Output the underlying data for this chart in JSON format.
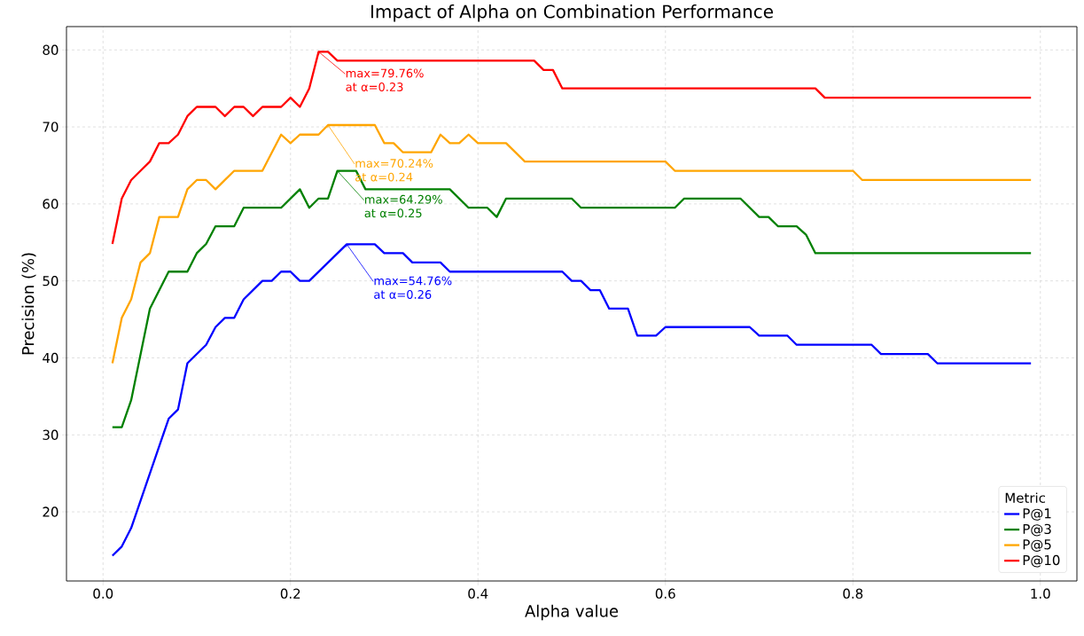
{
  "chart_data": {
    "type": "line",
    "title": "Impact of Alpha on Combination Performance",
    "xlabel": "Alpha value",
    "ylabel": "Precision (%)",
    "legend_title": "Metric",
    "series": [
      {
        "name": "P@1",
        "color": "#0000ff",
        "x": [
          0.01,
          0.02,
          0.03,
          0.07,
          0.08,
          0.09,
          0.11,
          0.12,
          0.13,
          0.14,
          0.15,
          0.17,
          0.18,
          0.19,
          0.2,
          0.21,
          0.22,
          0.26,
          0.29,
          0.3,
          0.32,
          0.33,
          0.36,
          0.37,
          0.49,
          0.5,
          0.51,
          0.52,
          0.53,
          0.54,
          0.56,
          0.57,
          0.59,
          0.6,
          0.69,
          0.7,
          0.73,
          0.74,
          0.82,
          0.83,
          0.88,
          0.89,
          0.99
        ],
        "values": [
          14.3,
          15.5,
          17.9,
          32.1,
          33.3,
          39.3,
          41.7,
          44.0,
          45.2,
          45.2,
          47.6,
          50.0,
          50.0,
          51.2,
          51.2,
          50.0,
          50.0,
          54.76,
          54.76,
          53.6,
          53.6,
          52.4,
          52.4,
          51.2,
          51.2,
          50.0,
          50.0,
          48.8,
          48.8,
          46.4,
          46.4,
          42.9,
          42.9,
          44.0,
          44.0,
          42.9,
          42.9,
          41.7,
          41.7,
          40.5,
          40.5,
          39.3,
          39.3
        ]
      },
      {
        "name": "P@3",
        "color": "#008000",
        "x": [
          0.01,
          0.02,
          0.03,
          0.05,
          0.06,
          0.07,
          0.09,
          0.1,
          0.11,
          0.12,
          0.14,
          0.15,
          0.19,
          0.21,
          0.22,
          0.23,
          0.24,
          0.25,
          0.27,
          0.28,
          0.37,
          0.39,
          0.41,
          0.42,
          0.43,
          0.5,
          0.51,
          0.61,
          0.62,
          0.68,
          0.7,
          0.71,
          0.72,
          0.74,
          0.75,
          0.76,
          0.99
        ],
        "values": [
          31.0,
          31.0,
          34.5,
          46.4,
          48.8,
          51.2,
          51.2,
          53.6,
          54.8,
          57.1,
          57.1,
          59.5,
          59.5,
          61.9,
          59.5,
          60.7,
          60.7,
          64.29,
          64.29,
          61.9,
          61.9,
          59.5,
          59.5,
          58.3,
          60.7,
          60.7,
          59.5,
          59.5,
          60.7,
          60.7,
          58.3,
          58.3,
          57.1,
          57.1,
          56.0,
          53.6,
          53.6
        ]
      },
      {
        "name": "P@5",
        "color": "#ffa500",
        "x": [
          0.01,
          0.02,
          0.03,
          0.04,
          0.05,
          0.06,
          0.08,
          0.09,
          0.1,
          0.11,
          0.12,
          0.14,
          0.17,
          0.19,
          0.2,
          0.21,
          0.23,
          0.24,
          0.29,
          0.3,
          0.31,
          0.32,
          0.35,
          0.36,
          0.37,
          0.38,
          0.39,
          0.4,
          0.43,
          0.45,
          0.6,
          0.61,
          0.8,
          0.81,
          0.99
        ],
        "values": [
          39.3,
          45.2,
          47.6,
          52.4,
          53.6,
          58.3,
          58.3,
          61.9,
          63.1,
          63.1,
          61.9,
          64.3,
          64.3,
          69.0,
          67.9,
          69.0,
          69.0,
          70.24,
          70.24,
          67.9,
          67.9,
          66.7,
          66.7,
          69.0,
          67.9,
          67.9,
          69.0,
          67.9,
          67.9,
          65.5,
          65.5,
          64.3,
          64.3,
          63.1,
          63.1
        ]
      },
      {
        "name": "P@10",
        "color": "#ff0000",
        "x": [
          0.01,
          0.02,
          0.03,
          0.04,
          0.05,
          0.06,
          0.07,
          0.08,
          0.09,
          0.1,
          0.12,
          0.13,
          0.14,
          0.15,
          0.16,
          0.17,
          0.19,
          0.2,
          0.21,
          0.22,
          0.23,
          0.24,
          0.25,
          0.46,
          0.47,
          0.48,
          0.49,
          0.76,
          0.77,
          0.99
        ],
        "values": [
          54.8,
          60.7,
          63.1,
          64.3,
          65.5,
          67.9,
          67.9,
          69.0,
          71.4,
          72.6,
          72.6,
          71.4,
          72.6,
          72.6,
          71.4,
          72.6,
          72.6,
          73.8,
          72.6,
          75.0,
          79.76,
          79.76,
          78.6,
          78.6,
          77.4,
          77.4,
          75.0,
          75.0,
          73.8,
          73.8
        ]
      }
    ],
    "annotations": [
      {
        "text": "max=54.76% at α=0.26",
        "x": 0.26,
        "y": 54.76
      },
      {
        "text": "max=64.29% at α=0.25",
        "x": 0.25,
        "y": 64.29
      },
      {
        "text": "max=70.24% at α=0.24",
        "x": 0.24,
        "y": 70.24
      },
      {
        "text": "max=79.76% at α=0.23",
        "x": 0.23,
        "y": 79.76
      }
    ],
    "xlim": [
      -0.039,
      1.039
    ],
    "ylim": [
      11.02,
      83.03
    ],
    "xticks": [
      {
        "value": 0,
        "label": "0.0"
      },
      {
        "value": 0.2,
        "label": "0.2"
      },
      {
        "value": 0.4,
        "label": "0.4"
      },
      {
        "value": 0.6,
        "label": "0.6"
      },
      {
        "value": 0.8,
        "label": "0.8"
      },
      {
        "value": 1.0,
        "label": "1.0"
      }
    ],
    "yticks": [
      20,
      30,
      40,
      50,
      60,
      70,
      80
    ],
    "grid": true,
    "legend": "bottom right",
    "line_style": "solid"
  }
}
